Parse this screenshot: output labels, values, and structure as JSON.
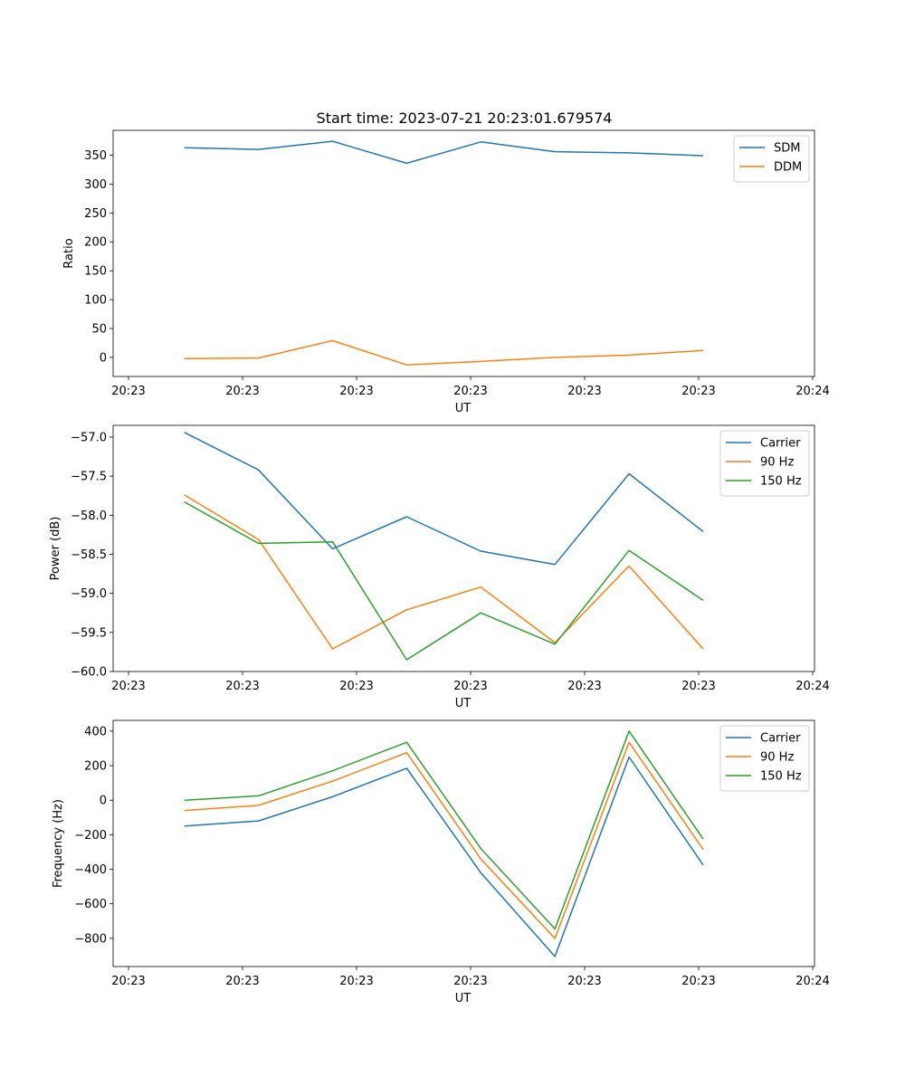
{
  "figure": {
    "title": "Start time: 2023-07-21 20:23:01.679574"
  },
  "chart_data": [
    {
      "type": "line",
      "title": "Start time: 2023-07-21 20:23:01.679574",
      "xlabel": "UT",
      "ylabel": "Ratio",
      "xlim": [
        0,
        6
      ],
      "ylim": [
        -33,
        393
      ],
      "xticks": [
        0.0,
        1.0,
        2.0,
        3.0,
        4.0,
        5.0,
        6.0
      ],
      "xtick_labels": [
        "20:23",
        "20:23",
        "20:23",
        "20:23",
        "20:23",
        "20:23",
        "20:24"
      ],
      "yticks": [
        0,
        50,
        100,
        150,
        200,
        250,
        300,
        350
      ],
      "ytick_labels": [
        "0",
        "50",
        "100",
        "150",
        "200",
        "250",
        "300",
        "350"
      ],
      "legend_position": "top-right",
      "x": [
        0.49,
        1.14,
        1.79,
        2.44,
        3.09,
        3.74,
        4.39,
        5.04
      ],
      "series": [
        {
          "name": "SDM",
          "color": "#1f77b4",
          "values": [
            363,
            360,
            374,
            336,
            373,
            356,
            354,
            349
          ]
        },
        {
          "name": "DDM",
          "color": "#ff7f0e",
          "values": [
            -2,
            -1,
            29,
            -13,
            -7,
            0,
            4,
            12
          ]
        }
      ]
    },
    {
      "type": "line",
      "title": "",
      "xlabel": "UT",
      "ylabel": "Power (dB)",
      "xlim": [
        0,
        6
      ],
      "ylim": [
        -60.0,
        -56.85
      ],
      "xticks": [
        0.0,
        1.0,
        2.0,
        3.0,
        4.0,
        5.0,
        6.0
      ],
      "xtick_labels": [
        "20:23",
        "20:23",
        "20:23",
        "20:23",
        "20:23",
        "20:23",
        "20:24"
      ],
      "yticks": [
        -60.0,
        -59.5,
        -59.0,
        -58.5,
        -58.0,
        -57.5,
        -57.0
      ],
      "ytick_labels": [
        "−60.0",
        "−59.5",
        "−59.0",
        "−58.5",
        "−58.0",
        "−57.5",
        "−57.0"
      ],
      "legend_position": "top-right",
      "x": [
        0.49,
        1.14,
        1.79,
        2.44,
        3.09,
        3.74,
        4.39,
        5.04
      ],
      "series": [
        {
          "name": "Carrier",
          "color": "#1f77b4",
          "values": [
            -56.94,
            -57.42,
            -58.43,
            -58.02,
            -58.46,
            -58.63,
            -57.47,
            -58.21
          ]
        },
        {
          "name": "90 Hz",
          "color": "#ff7f0e",
          "values": [
            -57.74,
            -58.31,
            -59.71,
            -59.21,
            -58.92,
            -59.63,
            -58.65,
            -59.71
          ]
        },
        {
          "name": "150 Hz",
          "color": "#2ca02c",
          "values": [
            -57.83,
            -58.36,
            -58.34,
            -59.85,
            -59.25,
            -59.65,
            -58.45,
            -59.09
          ]
        }
      ]
    },
    {
      "type": "line",
      "title": "",
      "xlabel": "UT",
      "ylabel": "Frequency (Hz)",
      "xlim": [
        0,
        6
      ],
      "ylim": [
        -963,
        462
      ],
      "xticks": [
        0.0,
        1.0,
        2.0,
        3.0,
        4.0,
        5.0,
        6.0
      ],
      "xtick_labels": [
        "20:23",
        "20:23",
        "20:23",
        "20:23",
        "20:23",
        "20:23",
        "20:24"
      ],
      "yticks": [
        -800,
        -600,
        -400,
        -200,
        0,
        200,
        400
      ],
      "ytick_labels": [
        "−800",
        "−600",
        "−400",
        "−200",
        "0",
        "200",
        "400"
      ],
      "legend_position": "top-right",
      "x": [
        0.49,
        1.14,
        1.79,
        2.44,
        3.09,
        3.74,
        4.39,
        5.04
      ],
      "series": [
        {
          "name": "Carrier",
          "color": "#1f77b4",
          "values": [
            -150,
            -120,
            20,
            185,
            -420,
            -905,
            250,
            -375
          ]
        },
        {
          "name": "90 Hz",
          "color": "#ff7f0e",
          "values": [
            -60,
            -30,
            110,
            275,
            -340,
            -800,
            335,
            -285
          ]
        },
        {
          "name": "150 Hz",
          "color": "#2ca02c",
          "values": [
            0,
            25,
            170,
            335,
            -280,
            -745,
            400,
            -225
          ]
        }
      ]
    }
  ]
}
